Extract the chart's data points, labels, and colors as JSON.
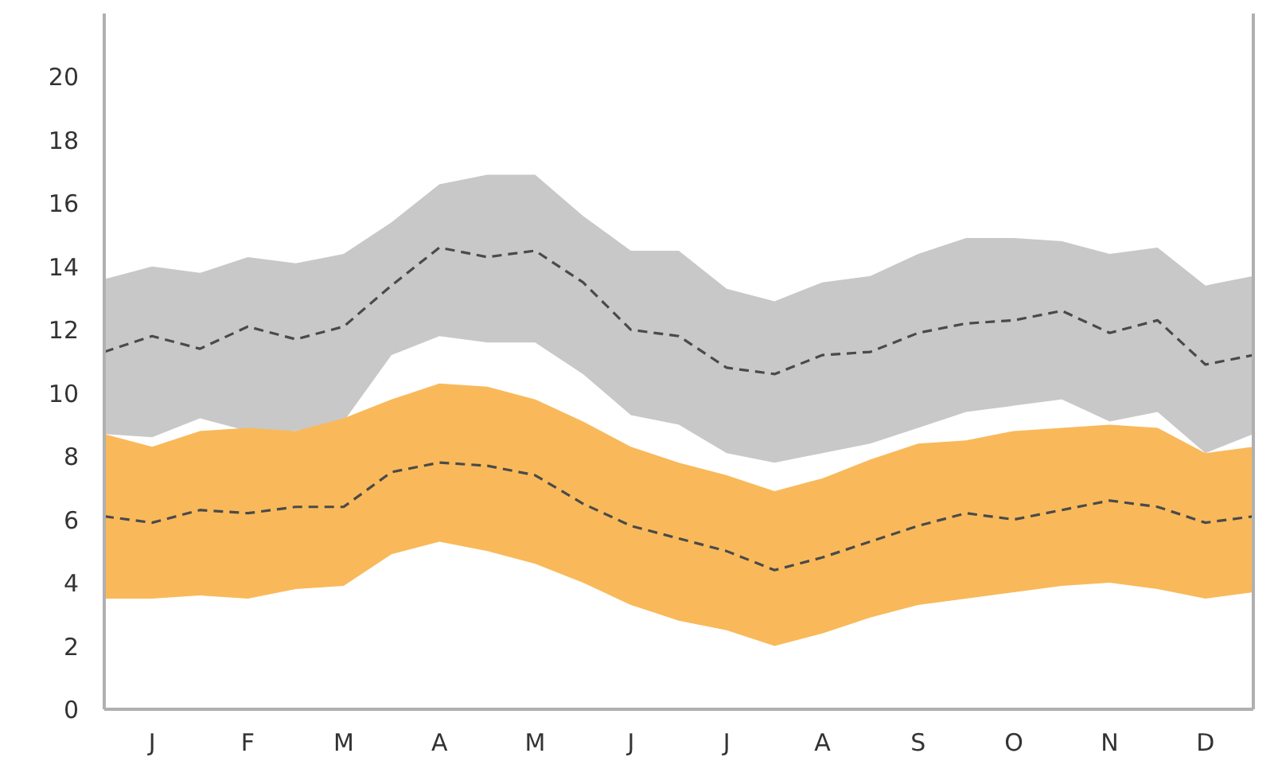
{
  "chart_data": {
    "type": "line",
    "categories": [
      null,
      "J",
      null,
      "F",
      null,
      "M",
      null,
      "A",
      null,
      "M",
      null,
      "J",
      null,
      "J",
      null,
      "A",
      null,
      "S",
      null,
      "O",
      null,
      "N",
      null,
      "D",
      null
    ],
    "series": [
      {
        "color": "#4a4a4a",
        "values": [
          11.3,
          11.8,
          11.4,
          12.1,
          11.7,
          12.1,
          13.4,
          14.6,
          14.3,
          14.5,
          13.5,
          12.0,
          11.8,
          10.8,
          10.6,
          11.2,
          11.3,
          11.9,
          12.2,
          12.3,
          12.6,
          11.9,
          12.3,
          10.9,
          11.2
        ],
        "lower": [
          8.7,
          8.6,
          9.2,
          8.8,
          8.8,
          9.1,
          11.2,
          11.8,
          11.6,
          11.6,
          10.6,
          9.3,
          9.0,
          8.1,
          7.8,
          8.1,
          8.4,
          8.9,
          9.4,
          9.6,
          9.8,
          9.1,
          9.4,
          8.1,
          8.7
        ],
        "upper": [
          13.6,
          14.0,
          13.8,
          14.3,
          14.1,
          14.4,
          15.4,
          16.6,
          16.9,
          16.9,
          15.6,
          14.5,
          14.5,
          13.3,
          12.9,
          13.5,
          13.7,
          14.4,
          14.9,
          14.9,
          14.8,
          14.4,
          14.6,
          13.4,
          13.7
        ]
      },
      {
        "color": "#4a4a4a",
        "values": [
          6.1,
          5.9,
          6.3,
          6.2,
          6.4,
          6.4,
          7.5,
          7.8,
          7.7,
          7.4,
          6.5,
          5.8,
          5.4,
          5.0,
          4.4,
          4.8,
          5.3,
          5.8,
          6.2,
          6.0,
          6.3,
          6.6,
          6.4,
          5.9,
          6.1
        ],
        "lower": [
          3.5,
          3.5,
          3.6,
          3.5,
          3.8,
          3.9,
          4.9,
          5.3,
          5.0,
          4.6,
          4.0,
          3.3,
          2.8,
          2.5,
          2.0,
          2.4,
          2.9,
          3.3,
          3.5,
          3.7,
          3.9,
          4.0,
          3.8,
          3.5,
          3.7
        ],
        "upper": [
          8.7,
          8.3,
          8.8,
          8.9,
          8.8,
          9.2,
          9.8,
          10.3,
          10.2,
          9.8,
          9.1,
          8.3,
          7.8,
          7.4,
          6.9,
          7.3,
          7.9,
          8.4,
          8.5,
          8.8,
          8.9,
          9.0,
          8.9,
          8.1,
          8.3
        ]
      }
    ],
    "ylim": [
      0,
      22
    ],
    "yticks": [
      0,
      2,
      4,
      6,
      8,
      10,
      12,
      14,
      16,
      18,
      20
    ],
    "line_style": "dashed",
    "grid": false
  }
}
